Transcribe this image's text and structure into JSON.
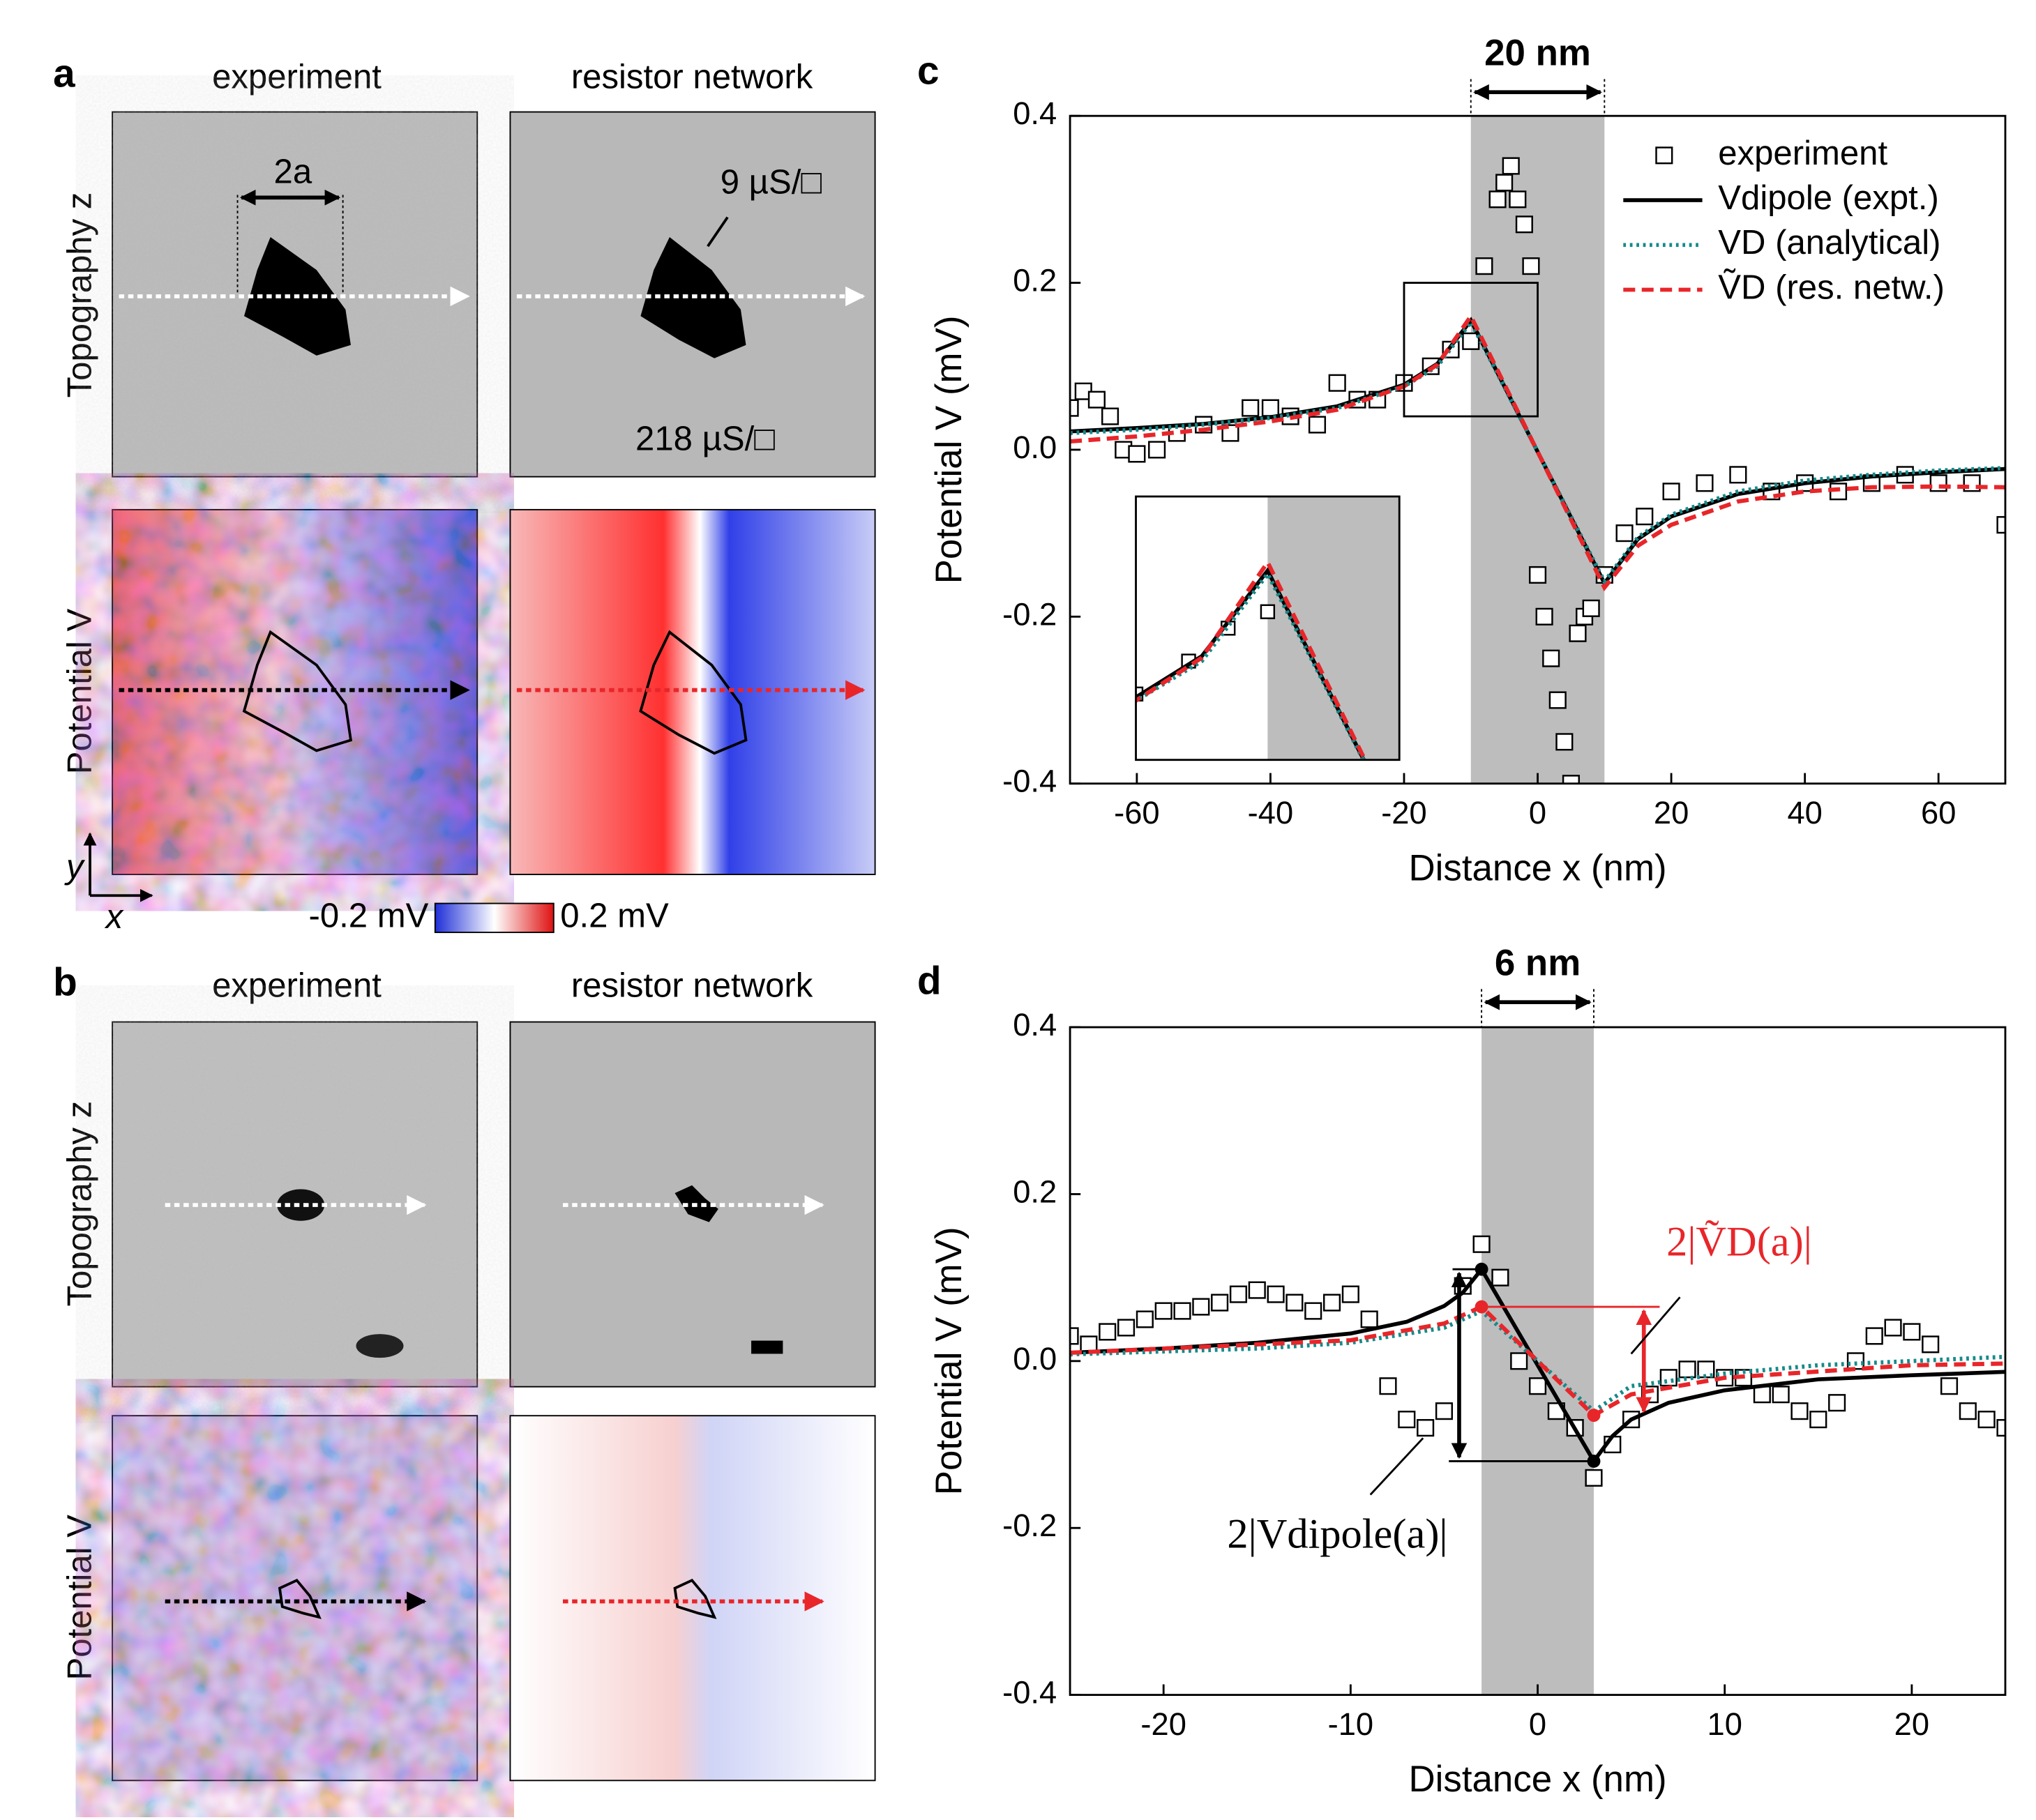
{
  "panels": {
    "a": {
      "label": "a",
      "col_titles": [
        "experiment",
        "resistor network"
      ],
      "row_titles": [
        "Topography z",
        "Potential V"
      ],
      "scale_label": "2a",
      "conductance_inner": "9 µS/□",
      "conductance_outer": "218 µS/□",
      "axis_y": "y",
      "axis_x": "x",
      "colorbar_min": "-0.2 mV",
      "colorbar_max": "0.2 mV"
    },
    "b": {
      "label": "b",
      "col_titles": [
        "experiment",
        "resistor network"
      ],
      "row_titles": [
        "Topography z",
        "Potential V"
      ]
    }
  },
  "chart_data": [
    {
      "type": "line",
      "panel_label": "c",
      "xlabel": "Distance x (nm)",
      "ylabel": "Potential V (mV)",
      "xlim": [
        -70,
        70
      ],
      "ylim": [
        -0.4,
        0.4
      ],
      "xticks": [
        -60,
        -40,
        -20,
        0,
        20,
        40,
        60
      ],
      "yticks": [
        -0.4,
        -0.2,
        {
          "value": 0,
          "label": "0.0"
        },
        0.2,
        0.4
      ],
      "shade": [
        -10,
        10
      ],
      "span_label": "20 nm",
      "legend": "upper right",
      "inset": {
        "xlim": [
          -20,
          0
        ],
        "ylim": [
          0.04,
          0.2
        ]
      },
      "series": [
        {
          "name": "experiment",
          "type": "scatter",
          "marker": "square",
          "color": "#000000",
          "x": [
            -70,
            -68,
            -66,
            -64,
            -62,
            -60,
            -57,
            -54,
            -50,
            -46,
            -43,
            -40,
            -37,
            -33,
            -30,
            -27,
            -24,
            -20,
            -16,
            -13,
            -10,
            -8,
            -6,
            -5,
            -4,
            -3,
            -2,
            -1,
            0,
            1,
            2,
            3,
            4,
            5,
            6,
            7,
            8,
            10,
            13,
            16,
            20,
            25,
            30,
            35,
            40,
            45,
            50,
            55,
            60,
            65,
            70
          ],
          "values": [
            0.05,
            0.07,
            0.06,
            0.04,
            0.0,
            -0.005,
            0.0,
            0.02,
            0.03,
            0.02,
            0.05,
            0.05,
            0.04,
            0.03,
            0.08,
            0.06,
            0.06,
            0.08,
            0.1,
            0.12,
            0.13,
            0.22,
            0.3,
            0.32,
            0.34,
            0.3,
            0.27,
            0.22,
            -0.15,
            -0.2,
            -0.25,
            -0.3,
            -0.35,
            -0.4,
            -0.22,
            -0.2,
            -0.19,
            -0.15,
            -0.1,
            -0.08,
            -0.05,
            -0.04,
            -0.03,
            -0.05,
            -0.04,
            -0.05,
            -0.04,
            -0.03,
            -0.04,
            -0.04,
            -0.09
          ]
        },
        {
          "name": "Vdipole (expt.)",
          "type": "line",
          "style": "solid",
          "color": "#000000",
          "x": [
            -70,
            -60,
            -50,
            -40,
            -30,
            -20,
            -15,
            -10,
            10,
            15,
            20,
            30,
            40,
            50,
            60,
            70
          ],
          "values": [
            0.022,
            0.026,
            0.031,
            0.039,
            0.052,
            0.078,
            0.103,
            0.155,
            -0.16,
            -0.107,
            -0.08,
            -0.053,
            -0.04,
            -0.032,
            -0.027,
            -0.023
          ]
        },
        {
          "name": "VD (analytical)",
          "type": "line",
          "style": "dotted",
          "color": "#178a8a",
          "x": [
            -70,
            -60,
            -50,
            -40,
            -30,
            -20,
            -15,
            -10,
            10,
            15,
            20,
            30,
            40,
            50,
            60,
            70
          ],
          "values": [
            0.02,
            0.024,
            0.03,
            0.038,
            0.05,
            0.076,
            0.1,
            0.153,
            -0.158,
            -0.105,
            -0.078,
            -0.05,
            -0.037,
            -0.03,
            -0.025,
            -0.022
          ]
        },
        {
          "name": "ṼD (res. netw.)",
          "type": "line",
          "style": "dashed",
          "color": "#e8262a",
          "x": [
            -70,
            -60,
            -50,
            -40,
            -30,
            -20,
            -15,
            -10,
            10,
            15,
            20,
            30,
            40,
            50,
            60,
            70
          ],
          "values": [
            0.01,
            0.016,
            0.024,
            0.034,
            0.048,
            0.076,
            0.102,
            0.16,
            -0.165,
            -0.115,
            -0.09,
            -0.062,
            -0.05,
            -0.045,
            -0.044,
            -0.045
          ]
        }
      ]
    },
    {
      "type": "line",
      "panel_label": "d",
      "xlabel": "Distance x (nm)",
      "ylabel": "Potential V (mV)",
      "xlim": [
        -25,
        25
      ],
      "ylim": [
        -0.4,
        0.4
      ],
      "xticks": [
        -20,
        -10,
        0,
        10,
        20
      ],
      "yticks": [
        -0.4,
        -0.2,
        {
          "value": 0,
          "label": "0.0"
        },
        0.2,
        0.4
      ],
      "shade": [
        -3,
        3
      ],
      "span_label": "6 nm",
      "annotations": [
        "2|Vdipole(a)|",
        "2|ṼD(a)|"
      ],
      "series": [
        {
          "name": "experiment",
          "type": "scatter",
          "marker": "square",
          "color": "#000000",
          "x": [
            -25,
            -24,
            -23,
            -22,
            -21,
            -20,
            -19,
            -18,
            -17,
            -16,
            -15,
            -14,
            -13,
            -12,
            -11,
            -10,
            -9,
            -8,
            -7,
            -6,
            -5,
            -4,
            -3,
            -2,
            -1,
            0,
            1,
            2,
            3,
            4,
            5,
            6,
            7,
            8,
            9,
            10,
            11,
            12,
            13,
            14,
            15,
            16,
            17,
            18,
            19,
            20,
            21,
            22,
            23,
            24,
            25
          ],
          "values": [
            0.03,
            0.02,
            0.035,
            0.04,
            0.05,
            0.06,
            0.06,
            0.065,
            0.07,
            0.08,
            0.085,
            0.08,
            0.07,
            0.06,
            0.07,
            0.08,
            0.05,
            -0.03,
            -0.07,
            -0.08,
            -0.06,
            0.09,
            0.14,
            0.1,
            0.0,
            -0.03,
            -0.06,
            -0.08,
            -0.14,
            -0.1,
            -0.07,
            -0.04,
            -0.02,
            -0.01,
            -0.01,
            -0.02,
            -0.02,
            -0.04,
            -0.04,
            -0.06,
            -0.07,
            -0.05,
            0.0,
            0.03,
            0.04,
            0.035,
            0.02,
            -0.03,
            -0.06,
            -0.07,
            -0.08
          ]
        },
        {
          "name": "Vdipole (expt.)",
          "type": "line",
          "style": "solid",
          "color": "#000000",
          "x": [
            -25,
            -20,
            -15,
            -10,
            -7,
            -5,
            -4,
            -3,
            3,
            4,
            5,
            7,
            10,
            15,
            20,
            25
          ],
          "values": [
            0.01,
            0.015,
            0.022,
            0.033,
            0.047,
            0.066,
            0.082,
            0.11,
            -0.12,
            -0.09,
            -0.07,
            -0.05,
            -0.035,
            -0.022,
            -0.017,
            -0.013
          ]
        },
        {
          "name": "VD (analytical)",
          "type": "line",
          "style": "dotted",
          "color": "#178a8a",
          "x": [
            -25,
            -15,
            -10,
            -5,
            -3,
            0,
            3,
            5,
            10,
            15,
            20,
            25
          ],
          "values": [
            0.008,
            0.015,
            0.022,
            0.04,
            0.06,
            0.0,
            -0.06,
            -0.03,
            -0.015,
            -0.005,
            0.0,
            0.005
          ]
        },
        {
          "name": "ṼD (res. netw.)",
          "type": "line",
          "style": "dashed",
          "color": "#e8262a",
          "x": [
            -25,
            -10,
            -5,
            -3,
            3,
            5,
            10,
            20,
            25
          ],
          "values": [
            0.01,
            0.025,
            0.045,
            0.065,
            -0.065,
            -0.04,
            -0.02,
            -0.005,
            -0.003
          ]
        }
      ]
    }
  ]
}
